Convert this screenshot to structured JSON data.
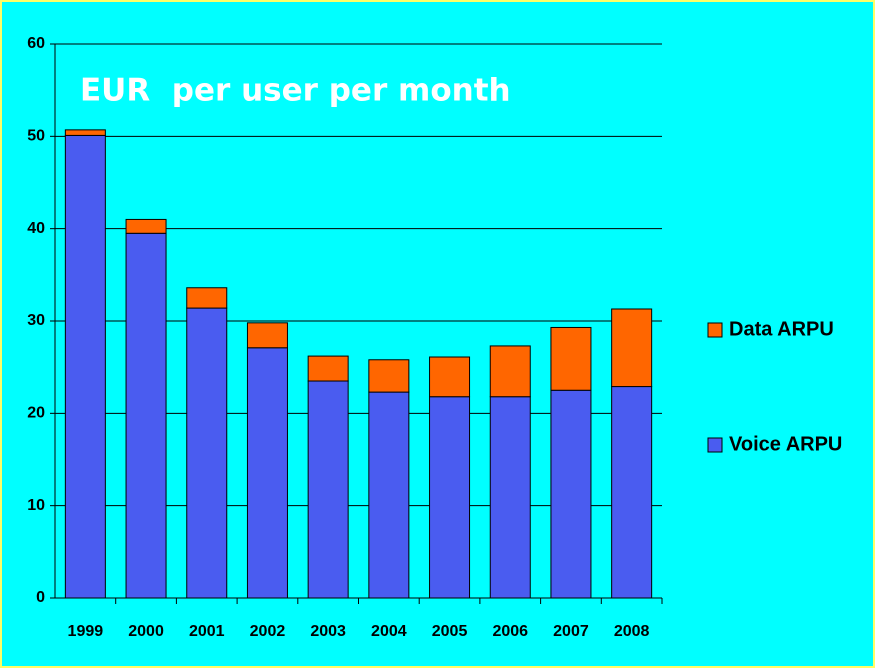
{
  "chart_data": {
    "type": "stacked_bar",
    "annotation": "EUR  per user per month",
    "categories": [
      "1999",
      "2000",
      "2001",
      "2002",
      "2003",
      "2004",
      "2005",
      "2006",
      "2007",
      "2008"
    ],
    "series": [
      {
        "name": "Voice ARPU",
        "color": "#4a5cf0",
        "values": [
          50.1,
          39.5,
          31.4,
          27.1,
          23.5,
          22.3,
          21.8,
          21.8,
          22.5,
          22.9
        ]
      },
      {
        "name": "Data ARPU",
        "color": "#ff6600",
        "values": [
          0.6,
          1.5,
          2.2,
          2.7,
          2.7,
          3.5,
          4.3,
          5.5,
          6.8,
          8.4
        ]
      }
    ],
    "ylim": [
      0,
      60
    ],
    "yticks": [
      0,
      10,
      20,
      30,
      40,
      50,
      60
    ],
    "grid": true,
    "legend": "right"
  }
}
